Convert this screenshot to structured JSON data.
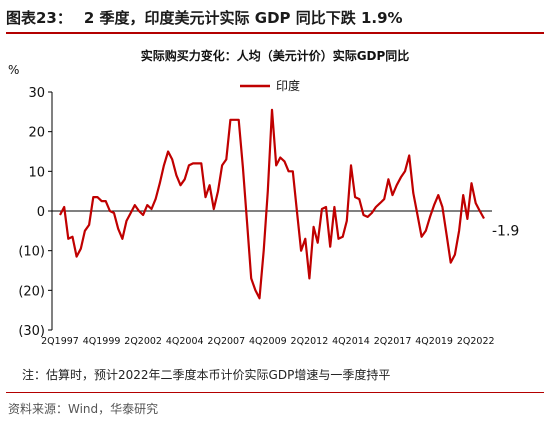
{
  "figure": {
    "label": "图表23：",
    "caption": "2 季度，印度美元计实际 GDP 同比下跌 1.9%"
  },
  "chart_data": {
    "type": "line",
    "title": "实际购买力变化：人均（美元计价）实际GDP同比",
    "ylabel": "%",
    "ylim": [
      -30,
      30
    ],
    "yticks": [
      -30,
      -20,
      -10,
      0,
      10,
      20,
      30
    ],
    "ytick_labels": [
      "(30)",
      "(20)",
      "(10)",
      "0",
      "10",
      "20",
      "30"
    ],
    "xtick_labels": [
      "2Q1997",
      "4Q1999",
      "2Q2002",
      "4Q2004",
      "2Q2007",
      "4Q2009",
      "2Q2012",
      "4Q2014",
      "2Q2017",
      "4Q2019",
      "2Q2022"
    ],
    "xtick_index": [
      0,
      10,
      20,
      30,
      40,
      50,
      60,
      70,
      80,
      90,
      100
    ],
    "legend_position": "top-center",
    "end_annotation": "-1.9",
    "series": [
      {
        "name": "印度",
        "color": "#c00000",
        "values": [
          -1,
          1,
          -7,
          -6.5,
          -11.5,
          -9.5,
          -5,
          -3.5,
          3.5,
          3.5,
          2.5,
          2.5,
          0,
          -0.5,
          -4.5,
          -7,
          -2.5,
          -0.5,
          1.5,
          0,
          -1,
          1.5,
          0.5,
          3,
          7,
          11.5,
          15,
          13,
          9,
          6.5,
          8,
          11.5,
          12,
          12,
          12,
          3.5,
          6.5,
          0.5,
          5,
          11.5,
          13,
          23,
          23,
          23,
          11,
          -3,
          -17,
          -20,
          -22,
          -10,
          5,
          25.5,
          11.5,
          13.5,
          12.5,
          10,
          10,
          0,
          -10,
          -7,
          -17,
          -4,
          -8,
          0.5,
          1,
          -9,
          1,
          -7,
          -6.5,
          -2.5,
          11.5,
          3.5,
          3,
          -1,
          -1.5,
          -0.5,
          1,
          2,
          3,
          8,
          4,
          6.5,
          8.5,
          10,
          14,
          4.5,
          -1,
          -6.5,
          -5,
          -1.5,
          1.5,
          4,
          1,
          -6,
          -13,
          -11,
          -5,
          4,
          -2,
          7,
          2,
          0,
          -1.9
        ]
      }
    ]
  },
  "note": "注：估算时，预计2022年二季度本币计价实际GDP增速与一季度持平",
  "source": "资料来源：Wind，华泰研究"
}
